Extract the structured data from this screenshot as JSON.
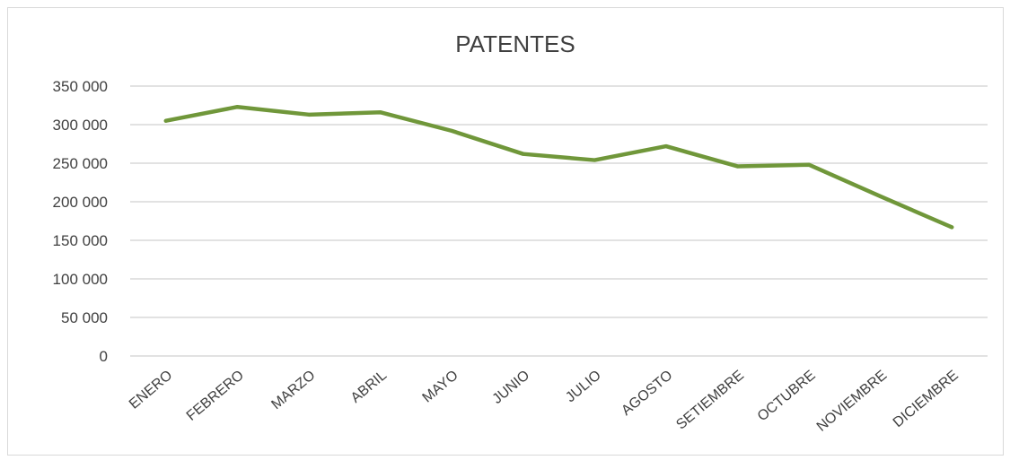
{
  "chart_data": {
    "type": "line",
    "title": "PATENTES",
    "categories": [
      "ENERO",
      "FEBRERO",
      "MARZO",
      "ABRIL",
      "MAYO",
      "JUNIO",
      "JULIO",
      "AGOSTO",
      "SETIEMBRE",
      "OCTUBRE",
      "NOVIEMBRE",
      "DICIEMBRE"
    ],
    "series": [
      {
        "values": [
          305000,
          323000,
          313000,
          316000,
          292000,
          262000,
          254000,
          272000,
          246000,
          248000,
          207000,
          167000
        ]
      }
    ],
    "ylim": [
      0,
      350000
    ],
    "yticks": [
      0,
      50000,
      100000,
      150000,
      200000,
      250000,
      300000,
      350000
    ],
    "ytick_labels": [
      "0",
      "50 000",
      "100 000",
      "150 000",
      "200 000",
      "250 000",
      "300 000",
      "350 000"
    ],
    "xlabel": "",
    "ylabel": "",
    "grid": true,
    "legend": "none",
    "colors": {
      "line": "#70973a",
      "grid": "#d9d9d9",
      "text": "#404040"
    }
  }
}
